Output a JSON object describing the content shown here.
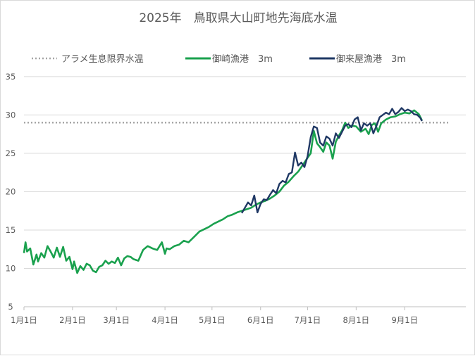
{
  "chart_data": {
    "type": "line",
    "title": "2025年　鳥取県大山町地先海底水温",
    "xlabel": "",
    "ylabel": "",
    "xlim": [
      "2025-01-01",
      "2025-10-10"
    ],
    "ylim": [
      5,
      37
    ],
    "yticks": [
      5,
      10,
      15,
      20,
      25,
      30,
      35
    ],
    "xticks": [
      {
        "date": "2025-01-01",
        "label": "1月1日"
      },
      {
        "date": "2025-02-01",
        "label": "2月1日"
      },
      {
        "date": "2025-03-01",
        "label": "3月1日"
      },
      {
        "date": "2025-04-01",
        "label": "4月1日"
      },
      {
        "date": "2025-05-01",
        "label": "5月1日"
      },
      {
        "date": "2025-06-01",
        "label": "6月1日"
      },
      {
        "date": "2025-07-01",
        "label": "7月1日"
      },
      {
        "date": "2025-08-01",
        "label": "8月1日"
      },
      {
        "date": "2025-09-01",
        "label": "9月1日"
      }
    ],
    "grid": "horizontal",
    "legend_position": "top",
    "series": [
      {
        "name": "アラメ生息限界水温",
        "style": "dotted",
        "color": "#a6a6a6",
        "x": [
          "2025-01-01",
          "2025-09-30"
        ],
        "y": [
          29,
          29
        ]
      },
      {
        "name": "御崎漁港　3m",
        "style": "solid",
        "color": "#1aa14e",
        "x": [
          "2025-01-01",
          "2025-01-02",
          "2025-01-03",
          "2025-01-05",
          "2025-01-07",
          "2025-01-09",
          "2025-01-10",
          "2025-01-12",
          "2025-01-14",
          "2025-01-16",
          "2025-01-18",
          "2025-01-20",
          "2025-01-22",
          "2025-01-24",
          "2025-01-26",
          "2025-01-28",
          "2025-01-30",
          "2025-02-01",
          "2025-02-02",
          "2025-02-04",
          "2025-02-06",
          "2025-02-08",
          "2025-02-10",
          "2025-02-12",
          "2025-02-14",
          "2025-02-16",
          "2025-02-18",
          "2025-02-20",
          "2025-02-22",
          "2025-02-24",
          "2025-02-26",
          "2025-02-28",
          "2025-03-02",
          "2025-03-04",
          "2025-03-06",
          "2025-03-08",
          "2025-03-10",
          "2025-03-12",
          "2025-03-15",
          "2025-03-18",
          "2025-03-21",
          "2025-03-24",
          "2025-03-27",
          "2025-03-30",
          "2025-04-01",
          "2025-04-02",
          "2025-04-04",
          "2025-04-07",
          "2025-04-10",
          "2025-04-13",
          "2025-04-16",
          "2025-04-20",
          "2025-04-23",
          "2025-04-26",
          "2025-04-29",
          "2025-05-02",
          "2025-05-05",
          "2025-05-08",
          "2025-05-11",
          "2025-05-14",
          "2025-05-17",
          "2025-05-20",
          "2025-05-23",
          "2025-05-26",
          "2025-05-29",
          "2025-06-01",
          "2025-06-04",
          "2025-06-07",
          "2025-06-10",
          "2025-06-13",
          "2025-06-16",
          "2025-06-19",
          "2025-06-22",
          "2025-06-25",
          "2025-06-28",
          "2025-07-01",
          "2025-07-03",
          "2025-07-05",
          "2025-07-07",
          "2025-07-09",
          "2025-07-11",
          "2025-07-13",
          "2025-07-15",
          "2025-07-17",
          "2025-07-19",
          "2025-07-21",
          "2025-07-23",
          "2025-07-25",
          "2025-07-27",
          "2025-07-29",
          "2025-08-01",
          "2025-08-04",
          "2025-08-07",
          "2025-08-09",
          "2025-08-11",
          "2025-08-13",
          "2025-08-15",
          "2025-08-17",
          "2025-08-20",
          "2025-08-23",
          "2025-08-26",
          "2025-08-29",
          "2025-09-01",
          "2025-09-04",
          "2025-09-07",
          "2025-09-10",
          "2025-09-12"
        ],
        "y": [
          12.0,
          13.4,
          12.2,
          12.6,
          10.5,
          11.8,
          10.9,
          12.0,
          11.4,
          12.9,
          12.2,
          11.4,
          12.7,
          11.5,
          12.8,
          11.0,
          11.5,
          9.9,
          10.9,
          9.4,
          10.3,
          9.8,
          10.6,
          10.4,
          9.7,
          9.5,
          10.2,
          10.4,
          11.0,
          10.6,
          10.9,
          10.7,
          11.4,
          10.4,
          11.3,
          11.6,
          11.5,
          11.2,
          11.0,
          12.4,
          12.9,
          12.6,
          12.4,
          13.4,
          11.9,
          12.6,
          12.5,
          12.9,
          13.1,
          13.6,
          13.4,
          14.2,
          14.8,
          15.1,
          15.4,
          15.8,
          16.1,
          16.4,
          16.8,
          17.0,
          17.3,
          17.5,
          17.7,
          17.9,
          18.3,
          18.6,
          18.8,
          19.1,
          19.5,
          20.0,
          20.8,
          21.3,
          22.0,
          22.6,
          23.5,
          24.4,
          25.0,
          27.9,
          26.3,
          25.8,
          25.2,
          26.4,
          26.0,
          24.3,
          26.5,
          27.3,
          28.0,
          29.0,
          28.3,
          28.6,
          28.5,
          27.8,
          28.2,
          27.5,
          28.7,
          28.9,
          27.8,
          28.9,
          29.4,
          29.7,
          29.8,
          30.1,
          30.3,
          30.2,
          30.6,
          30.1,
          29.3
        ]
      },
      {
        "name": "御来屋漁港　3m",
        "style": "solid",
        "color": "#1f3864",
        "x": [
          "2025-05-20",
          "2025-05-22",
          "2025-05-24",
          "2025-05-26",
          "2025-05-28",
          "2025-05-30",
          "2025-06-01",
          "2025-06-03",
          "2025-06-05",
          "2025-06-07",
          "2025-06-09",
          "2025-06-11",
          "2025-06-13",
          "2025-06-15",
          "2025-06-17",
          "2025-06-19",
          "2025-06-21",
          "2025-06-23",
          "2025-06-25",
          "2025-06-27",
          "2025-06-29",
          "2025-07-01",
          "2025-07-03",
          "2025-07-05",
          "2025-07-07",
          "2025-07-09",
          "2025-07-11",
          "2025-07-13",
          "2025-07-15",
          "2025-07-17",
          "2025-07-19",
          "2025-07-21",
          "2025-07-23",
          "2025-07-25",
          "2025-07-27",
          "2025-07-29",
          "2025-07-31",
          "2025-08-02",
          "2025-08-04",
          "2025-08-06",
          "2025-08-08",
          "2025-08-10",
          "2025-08-12",
          "2025-08-14",
          "2025-08-16",
          "2025-08-18",
          "2025-08-20",
          "2025-08-22",
          "2025-08-24",
          "2025-08-26",
          "2025-08-28",
          "2025-08-30",
          "2025-09-01",
          "2025-09-03",
          "2025-09-05",
          "2025-09-07",
          "2025-09-09",
          "2025-09-11",
          "2025-09-12"
        ],
        "y": [
          17.2,
          17.9,
          18.6,
          18.2,
          19.5,
          17.3,
          18.4,
          19.0,
          18.9,
          19.6,
          20.2,
          19.8,
          21.0,
          21.4,
          21.2,
          22.3,
          22.5,
          25.1,
          23.4,
          23.8,
          23.2,
          24.6,
          27.1,
          28.5,
          28.3,
          26.4,
          26.0,
          27.2,
          26.9,
          26.0,
          27.6,
          27.0,
          27.8,
          28.6,
          28.8,
          28.4,
          29.4,
          29.7,
          28.0,
          28.9,
          28.6,
          28.9,
          27.6,
          28.6,
          29.7,
          30.0,
          30.3,
          30.1,
          30.8,
          30.1,
          30.4,
          30.9,
          30.5,
          30.7,
          30.5,
          30.1,
          30.0,
          29.6,
          29.2
        ]
      }
    ]
  }
}
